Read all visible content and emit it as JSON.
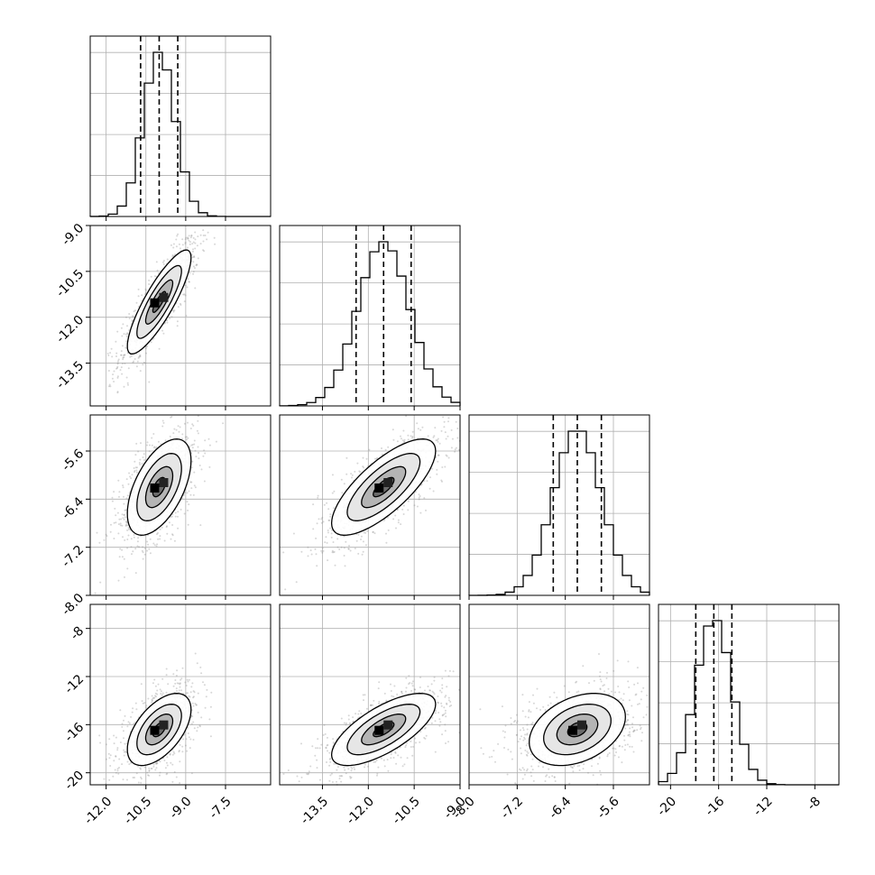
{
  "chart_data": {
    "type": "corner",
    "n_params": 4,
    "grid": true,
    "colors": {
      "hist_line": "#000000",
      "density_dark": "#000000",
      "scatter": "#8c8c8c",
      "grid": "#b0b0b0"
    },
    "params": [
      {
        "range": [
          -12.6,
          -5.8
        ],
        "median": -10.0,
        "q16": -10.7,
        "q84": -9.3,
        "sigma": 0.6,
        "x_ticks": [
          "-12.0",
          "-10.5",
          "-9.0",
          "-7.5"
        ],
        "x_tick_values": [
          -12.0,
          -10.5,
          -9.0,
          -7.5
        ],
        "y_ticks": [
          "-9.0",
          "-10.5",
          "-12.0",
          "-13.5"
        ],
        "y_tick_values": [
          -9.0,
          -10.5,
          -12.0,
          -13.5
        ]
      },
      {
        "range": [
          -14.9,
          -9.0
        ],
        "median": -11.5,
        "q16": -12.4,
        "q84": -10.6,
        "sigma": 0.85,
        "x_ticks": [
          "-13.5",
          "-12.0",
          "-10.5",
          "-9.0"
        ],
        "x_tick_values": [
          -13.5,
          -12.0,
          -10.5,
          -9.0
        ],
        "y_ticks": [
          "-5.6",
          "-6.4",
          "-7.2",
          "-8.0"
        ],
        "y_tick_values": [
          -5.6,
          -6.4,
          -7.2,
          -8.0
        ]
      },
      {
        "range": [
          -8.0,
          -5.0
        ],
        "median": -6.2,
        "q16": -6.6,
        "q84": -5.8,
        "sigma": 0.4,
        "x_ticks": [
          "-8.0",
          "-7.2",
          "-6.4",
          "-5.6"
        ],
        "x_tick_values": [
          -8.0,
          -7.2,
          -6.4,
          -5.6
        ],
        "y_ticks": [
          "-8",
          "-12",
          "-16",
          "-20"
        ],
        "y_tick_values": [
          -8,
          -12,
          -16,
          -20
        ]
      },
      {
        "range": [
          -21.0,
          -6.0
        ],
        "median": -16.4,
        "q16": -17.9,
        "q84": -14.9,
        "sigma": 1.5,
        "x_ticks": [
          "-20",
          "-16",
          "-12",
          "-8"
        ],
        "x_tick_values": [
          -20,
          -16,
          -12,
          -8
        ]
      }
    ],
    "correlations": [
      {
        "pair": [
          0,
          1
        ],
        "rho": 0.85
      },
      {
        "pair": [
          0,
          2
        ],
        "rho": 0.55
      },
      {
        "pair": [
          1,
          2
        ],
        "rho": 0.75
      },
      {
        "pair": [
          0,
          3
        ],
        "rho": 0.55
      },
      {
        "pair": [
          1,
          3
        ],
        "rho": 0.7
      },
      {
        "pair": [
          2,
          3
        ],
        "rho": 0.35
      }
    ]
  }
}
